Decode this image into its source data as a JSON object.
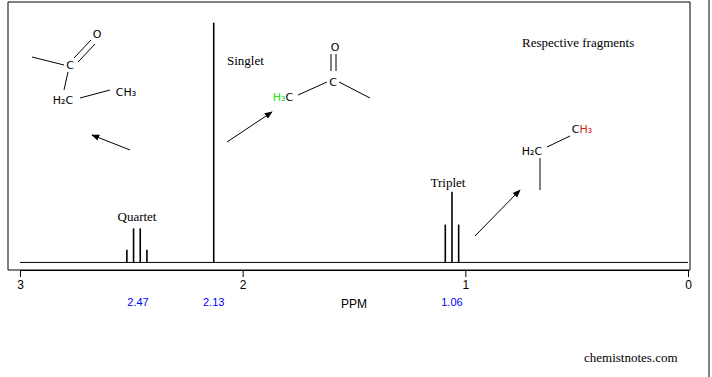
{
  "chart_data": {
    "type": "stem",
    "x_label": "PPM",
    "x": [
      2.52,
      2.49,
      2.46,
      2.43,
      2.13,
      1.09,
      1.06,
      1.03
    ],
    "values": [
      5,
      13.5,
      13.5,
      5,
      95,
      15,
      28,
      15
    ],
    "baseline": 0,
    "xlim": [
      3,
      0
    ],
    "xticks": [
      3,
      2,
      1,
      0
    ],
    "ylim": [
      -3,
      100
    ],
    "tick_labels": "x",
    "color": "#000000",
    "peak_labels": [
      2.47,
      2.13,
      1.06
    ],
    "annotations": [
      "Quartet",
      "Singlet",
      "Triplet",
      "Respective fragments",
      "chemistnotes.com"
    ],
    "fragments": [
      {
        "labels": [
          {
            "parts": [
              {
                "text": "O"
              }
            ]
          },
          {
            "parts": [
              {
                "text": "C"
              }
            ]
          },
          {
            "parts": [
              {
                "text": "H₂C"
              }
            ]
          },
          {
            "parts": [
              {
                "text": "CH₃"
              }
            ]
          }
        ]
      },
      {
        "labels": [
          {
            "parts": [
              {
                "text": "O"
              }
            ]
          },
          {
            "parts": [
              {
                "text": "C"
              }
            ]
          },
          {
            "parts": [
              {
                "text": "H₃",
                "color": "#22dd22"
              },
              {
                "text": "C"
              }
            ]
          }
        ]
      },
      {
        "labels": [
          {
            "parts": [
              {
                "text": "H₂C"
              }
            ]
          },
          {
            "parts": [
              {
                "text": "C"
              },
              {
                "text": "H₃",
                "color": "#dd2222"
              }
            ]
          }
        ]
      }
    ]
  }
}
